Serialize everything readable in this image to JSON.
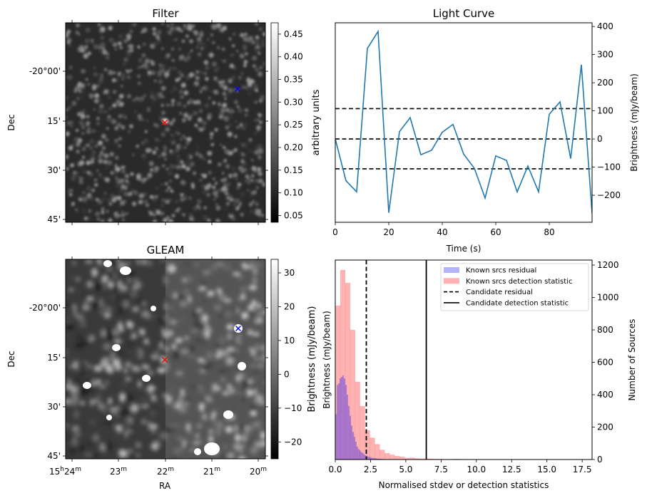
{
  "chart_data": [
    {
      "type": "heatmap",
      "id": "filter",
      "title": "Filter",
      "xlabel": "",
      "ylabel": "Dec",
      "ytick_labels": [
        "-20°00'",
        "15'",
        "30'",
        "45'"
      ],
      "colorbar": {
        "label": "arbitrary units",
        "ticks": [
          0.05,
          0.1,
          0.15,
          0.2,
          0.25,
          0.3,
          0.35,
          0.4,
          0.45
        ],
        "tick_labels": [
          "0.05",
          "0.10",
          "0.15",
          "0.20",
          "0.25",
          "0.30",
          "0.35",
          "0.40",
          "0.45"
        ],
        "range": [
          0.035,
          0.475
        ],
        "colormap": "gray"
      },
      "markers": [
        {
          "name": "candidate",
          "color": "#ff0000",
          "symbol": "x"
        },
        {
          "name": "known-source",
          "color": "#0000ff",
          "symbol": "x"
        }
      ]
    },
    {
      "type": "line",
      "id": "lightcurve",
      "title": "Light Curve",
      "xlabel": "Time (s)",
      "ylabel": "Brightness (mJy/beam)",
      "xlim": [
        0,
        96
      ],
      "ylim": [
        -296,
        413
      ],
      "xticks": [
        0,
        20,
        40,
        60,
        80
      ],
      "yticks": [
        -200,
        -100,
        0,
        100,
        200,
        300,
        400
      ],
      "ytick_labels": [
        "−200",
        "−100",
        "0",
        "100",
        "200",
        "300",
        "400"
      ],
      "series": [
        {
          "name": "light curve",
          "color": "#1f77b4",
          "x": [
            0,
            4,
            8,
            12,
            16,
            20,
            24,
            28,
            32,
            36,
            40,
            44,
            48,
            52,
            56,
            60,
            64,
            68,
            72,
            76,
            80,
            84,
            88,
            92,
            96
          ],
          "y": [
            0,
            -148,
            -188,
            322,
            382,
            -262,
            26,
            76,
            -56,
            -40,
            24,
            52,
            -54,
            -104,
            -210,
            -60,
            -76,
            -188,
            -96,
            -188,
            88,
            132,
            -70,
            264,
            -264
          ]
        }
      ],
      "hlines": [
        {
          "y": 108,
          "style": "dashed",
          "color": "#000000"
        },
        {
          "y": 0,
          "style": "dashed",
          "color": "#000000"
        },
        {
          "y": -106,
          "style": "dashed",
          "color": "#000000"
        }
      ]
    },
    {
      "type": "heatmap",
      "id": "gleam",
      "title": "GLEAM",
      "xlabel": "RA",
      "ylabel": "Dec",
      "xtick_labels": [
        {
          "main": "15",
          "sup1": "h",
          "main2": "24",
          "sup2": "m"
        },
        {
          "main": "23",
          "sup2": "m"
        },
        {
          "main": "22",
          "sup2": "m"
        },
        {
          "main": "21",
          "sup2": "m"
        },
        {
          "main": "20",
          "sup2": "m"
        }
      ],
      "ytick_labels": [
        "-20°00'",
        "15'",
        "30'",
        "45'"
      ],
      "colorbar": {
        "label": "Brightness (mJy/beam)",
        "ticks": [
          -20,
          -10,
          0,
          10,
          20,
          30
        ],
        "tick_labels": [
          "−20",
          "−10",
          "0",
          "10",
          "20",
          "30"
        ],
        "range": [
          -25,
          34
        ],
        "colormap": "gray"
      },
      "markers": [
        {
          "name": "candidate",
          "color": "#ff0000",
          "symbol": "x"
        },
        {
          "name": "known-source",
          "color": "#0000ff",
          "symbol": "x"
        }
      ]
    },
    {
      "type": "bar",
      "id": "histogram",
      "title": "",
      "xlabel": "Normalised stdev or detection statistics",
      "ylabel": "Number of Sources",
      "left_label": "Brightness (mJy/beam)",
      "xlim": [
        0,
        18.2
      ],
      "ylim": [
        0,
        1231
      ],
      "xticks": [
        0.0,
        2.5,
        5.0,
        7.5,
        10.0,
        12.5,
        15.0,
        17.5
      ],
      "xtick_labels": [
        "0.0",
        "2.5",
        "5.0",
        "7.5",
        "10.0",
        "12.5",
        "15.0",
        "17.5"
      ],
      "yticks": [
        0,
        200,
        400,
        600,
        800,
        1000,
        1200
      ],
      "series": [
        {
          "name": "Known srcs detection statistic",
          "color": "#ff0000",
          "alpha": 0.3,
          "bin_width": 0.35,
          "bin_start": 0,
          "values": [
            950,
            1170,
            1090,
            800,
            480,
            330,
            180,
            135,
            95,
            60,
            40,
            30,
            22,
            18,
            10,
            12,
            8,
            6,
            6,
            5,
            4,
            3,
            2,
            3,
            4,
            3,
            2,
            2,
            1,
            2,
            1,
            1,
            1,
            1,
            1,
            1,
            0,
            2,
            1,
            0,
            1,
            0,
            0,
            1,
            0,
            0,
            1,
            0,
            0,
            1,
            0
          ]
        },
        {
          "name": "Known srcs residual",
          "color": "#0000ff",
          "alpha": 0.3,
          "bin_width": 0.1,
          "bin_start": 0,
          "values": [
            280,
            460,
            470,
            500,
            510,
            520,
            500,
            460,
            400,
            330,
            270,
            210,
            170,
            140,
            110,
            80,
            65,
            55,
            45,
            40,
            30,
            25,
            20,
            18,
            15,
            12,
            10,
            9,
            8,
            6,
            5,
            4,
            4,
            3,
            3,
            2,
            2,
            2,
            1,
            1,
            1,
            1,
            1
          ]
        }
      ],
      "vlines": [
        {
          "name": "Candidate residual",
          "x": 2.2,
          "style": "dashed",
          "color": "#000000"
        },
        {
          "name": "Candidate detection statistic",
          "x": 6.45,
          "style": "solid",
          "color": "#000000"
        }
      ],
      "legend": {
        "position": "top-right",
        "entries": [
          {
            "label": "Known srcs residual",
            "kind": "patch",
            "color": "#b2b2ff"
          },
          {
            "label": "Known srcs detection statistic",
            "kind": "patch",
            "color": "#ffb2b2"
          },
          {
            "label": "Candidate residual",
            "kind": "dashed"
          },
          {
            "label": "Candidate detection statistic",
            "kind": "solid"
          }
        ]
      }
    }
  ]
}
